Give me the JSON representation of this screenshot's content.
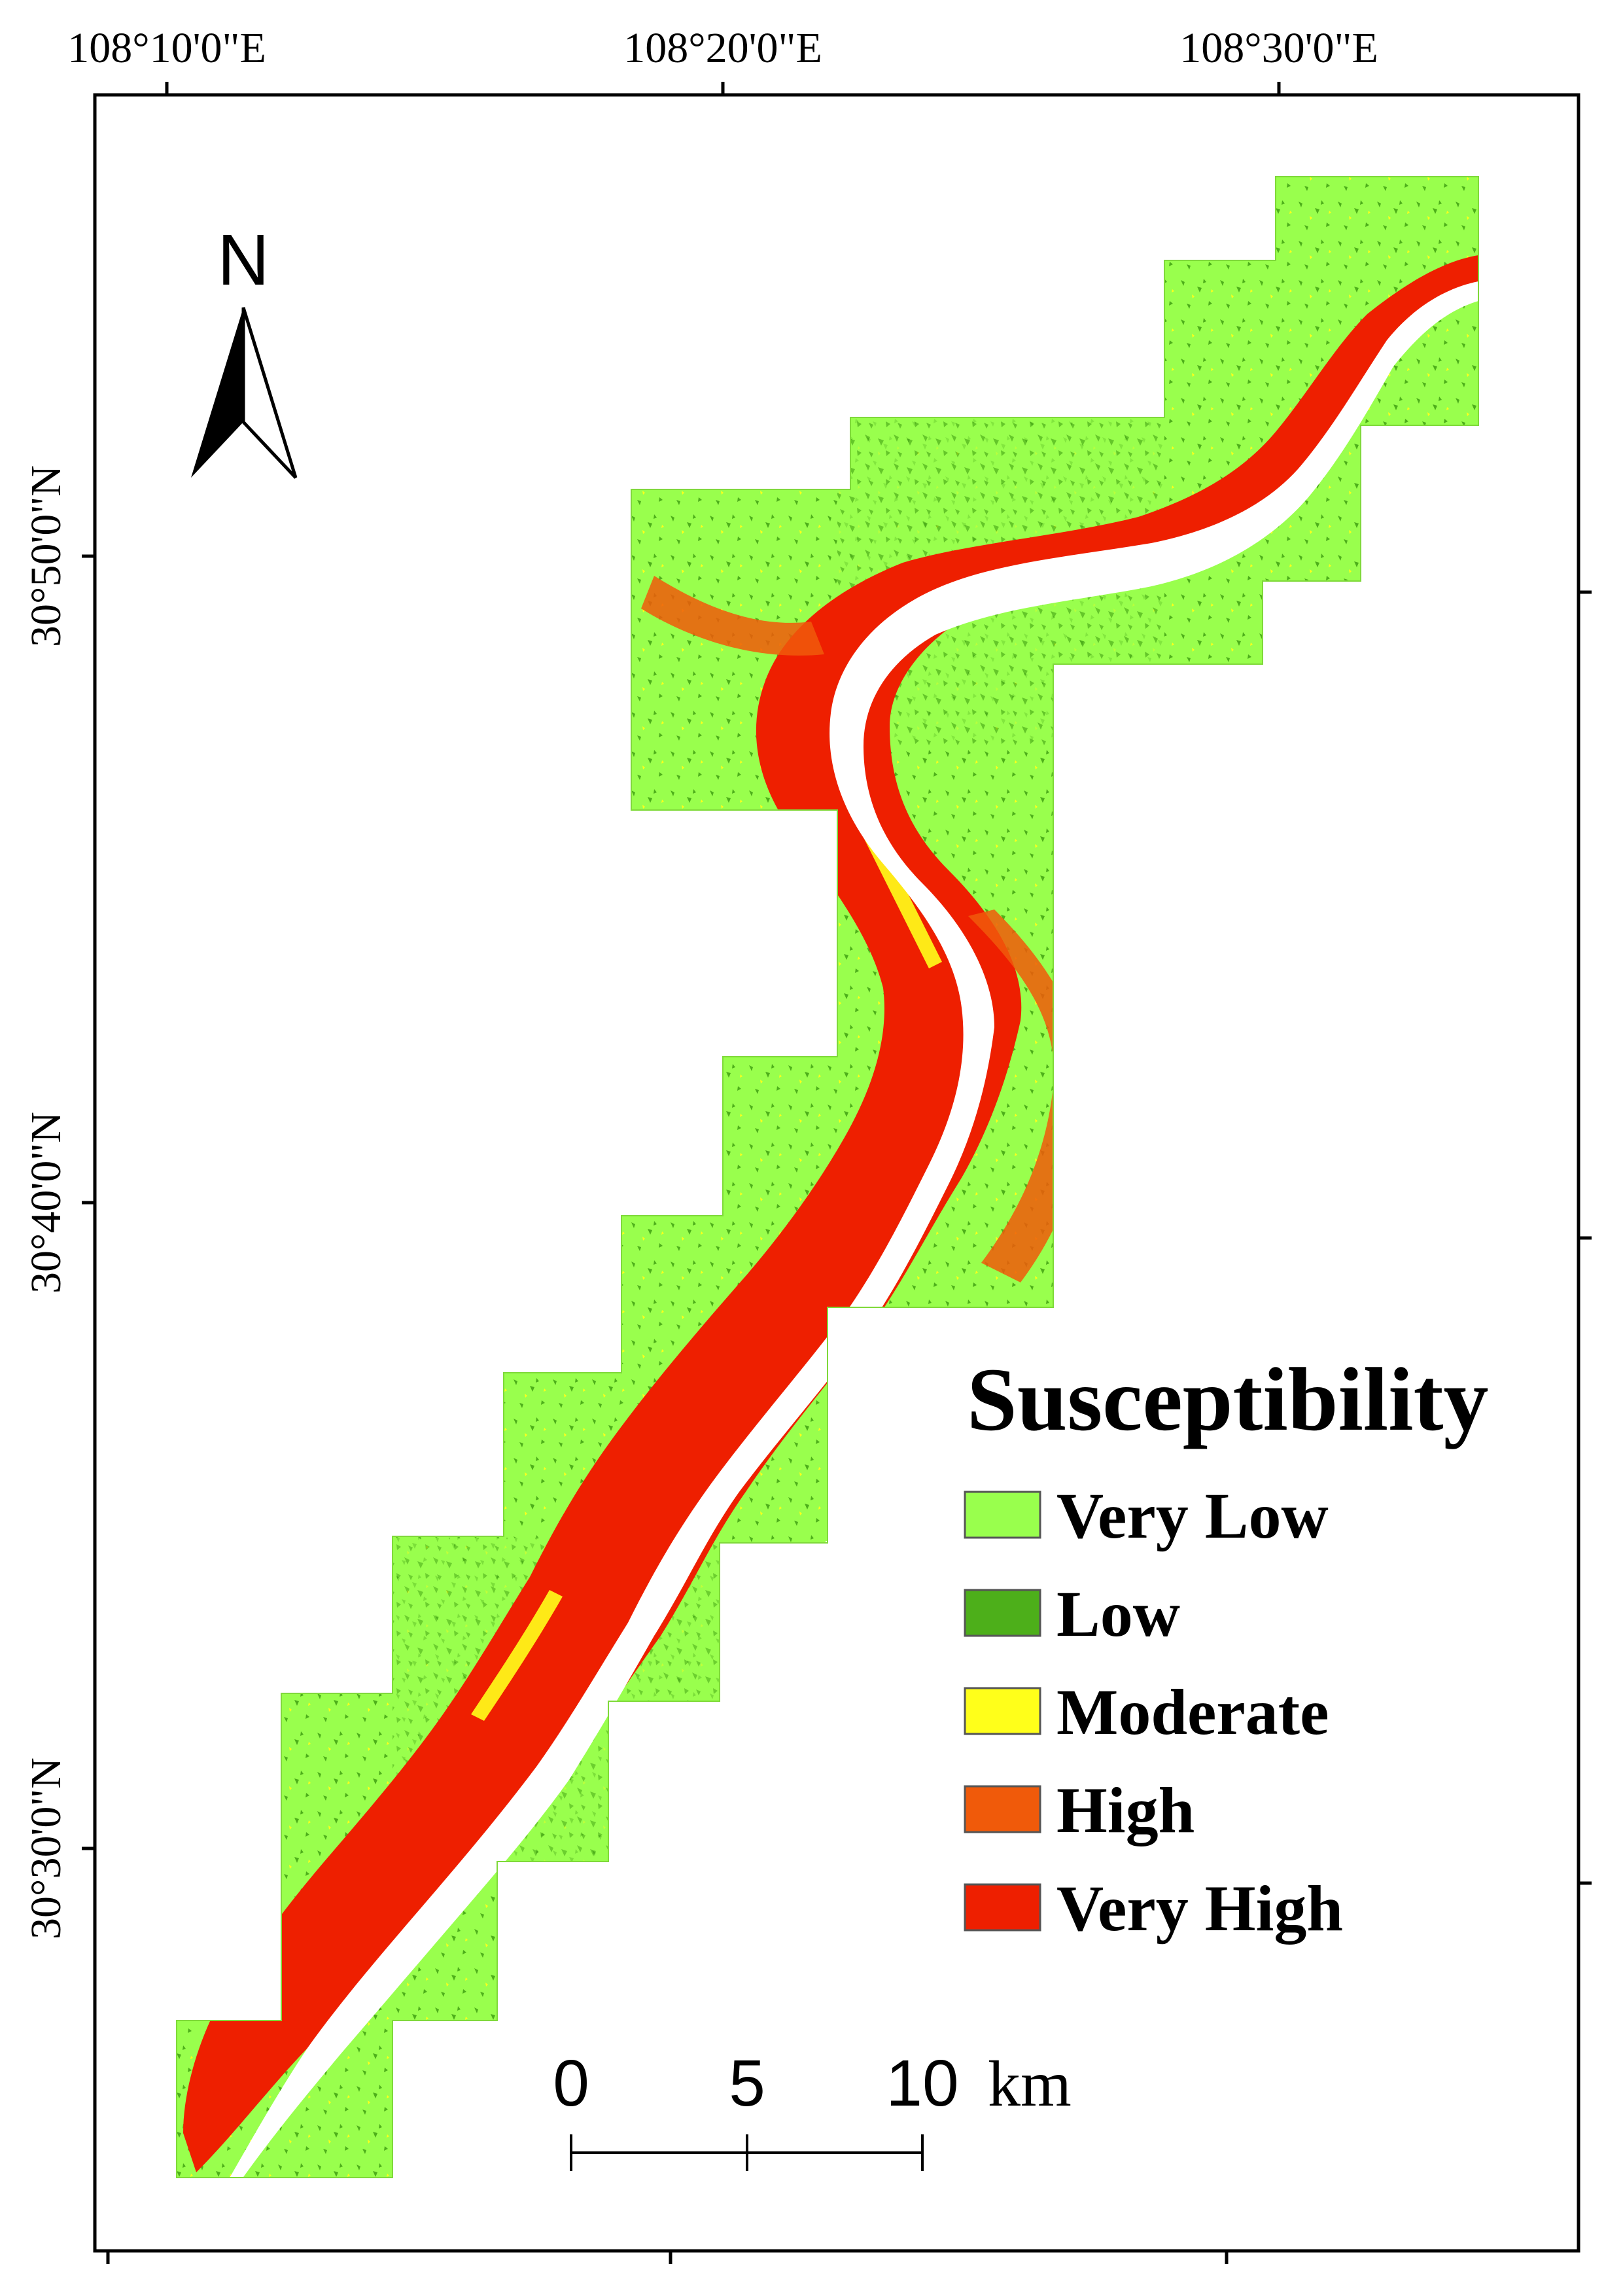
{
  "axes": {
    "top_labels": [
      "108°10'0\"E",
      "108°20'0\"E",
      "108°30'0\"E"
    ],
    "left_labels": [
      "30°50'0\"N",
      "30°40'0\"N",
      "30°30'0\"N"
    ]
  },
  "north_arrow": {
    "label": "N"
  },
  "legend": {
    "title": "Susceptibility",
    "items": [
      {
        "label": "Very Low",
        "color": "#99FF4D"
      },
      {
        "label": "Low",
        "color": "#4DAF1A"
      },
      {
        "label": "Moderate",
        "color": "#FFFF1A"
      },
      {
        "label": "High",
        "color": "#F05A0A"
      },
      {
        "label": "Very High",
        "color": "#EE1F00"
      }
    ]
  },
  "scale_bar": {
    "ticks": [
      "0",
      "5",
      "10"
    ],
    "unit": "km"
  },
  "map_colors": {
    "very_low": "#99FF4D",
    "low": "#4DAF1A",
    "moderate": "#FFFF1A",
    "high": "#F05A0A",
    "very_high": "#EE1F00",
    "water": "#FFFFFF",
    "frame": "#000000"
  }
}
